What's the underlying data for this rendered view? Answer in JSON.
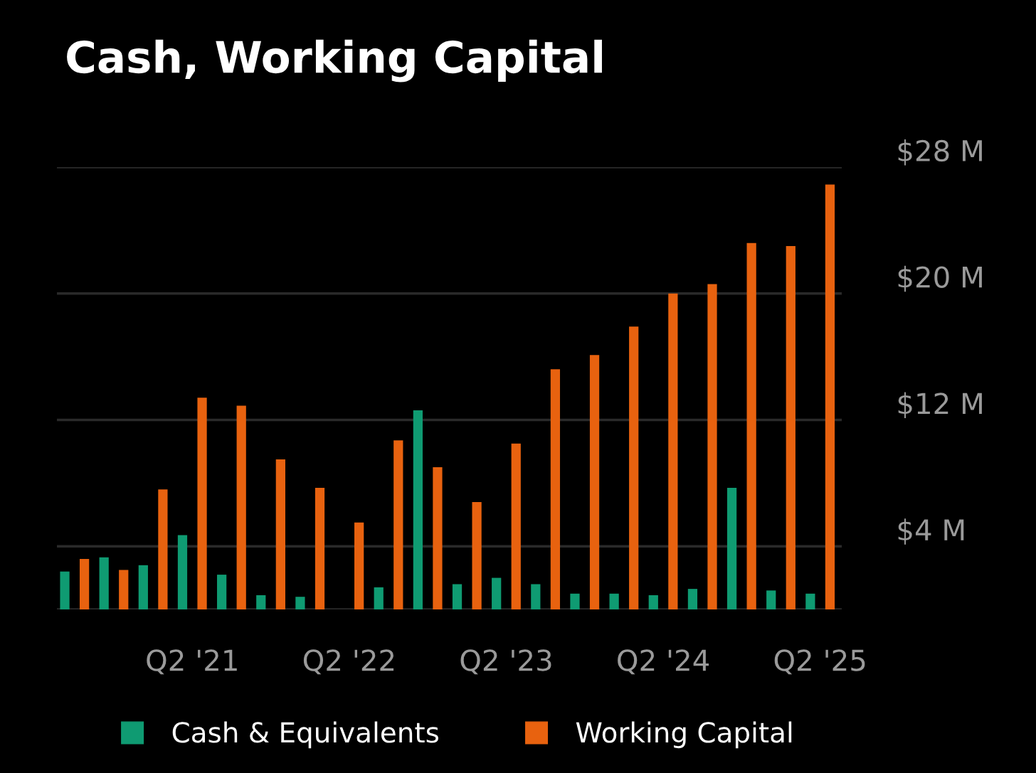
{
  "chart_data": {
    "type": "bar",
    "title": "Cash, Working Capital",
    "categories": [
      null,
      null,
      null,
      "Q2 '21",
      null,
      null,
      null,
      "Q2 '22",
      null,
      null,
      null,
      "Q2 '23",
      null,
      null,
      null,
      "Q2 '24",
      null,
      null,
      null,
      "Q2 '25"
    ],
    "series": [
      {
        "name": "Cash & Equivalents",
        "color": "#0f9b72",
        "values": [
          2.4,
          3.3,
          2.8,
          4.7,
          2.2,
          0.9,
          0.8,
          null,
          1.4,
          12.6,
          1.6,
          2.0,
          1.6,
          1.0,
          1.0,
          0.9,
          1.3,
          7.7,
          1.2,
          1.0
        ]
      },
      {
        "name": "Working Capital",
        "color": "#e8620f",
        "values": [
          3.2,
          2.5,
          7.6,
          13.4,
          12.9,
          9.5,
          7.7,
          5.5,
          10.7,
          9.0,
          6.8,
          10.5,
          15.2,
          16.1,
          17.9,
          20.0,
          20.6,
          23.2,
          23.0,
          26.9
        ]
      }
    ],
    "ylim": [
      0,
      28
    ],
    "yticks": [
      {
        "value": 0,
        "label": null
      },
      {
        "value": 4,
        "label": "$4 M"
      },
      {
        "value": 12,
        "label": "$12 M"
      },
      {
        "value": 20,
        "label": "$20 M"
      },
      {
        "value": 28,
        "label": "$28 M"
      }
    ],
    "grid": "y",
    "legend": "bottom"
  }
}
